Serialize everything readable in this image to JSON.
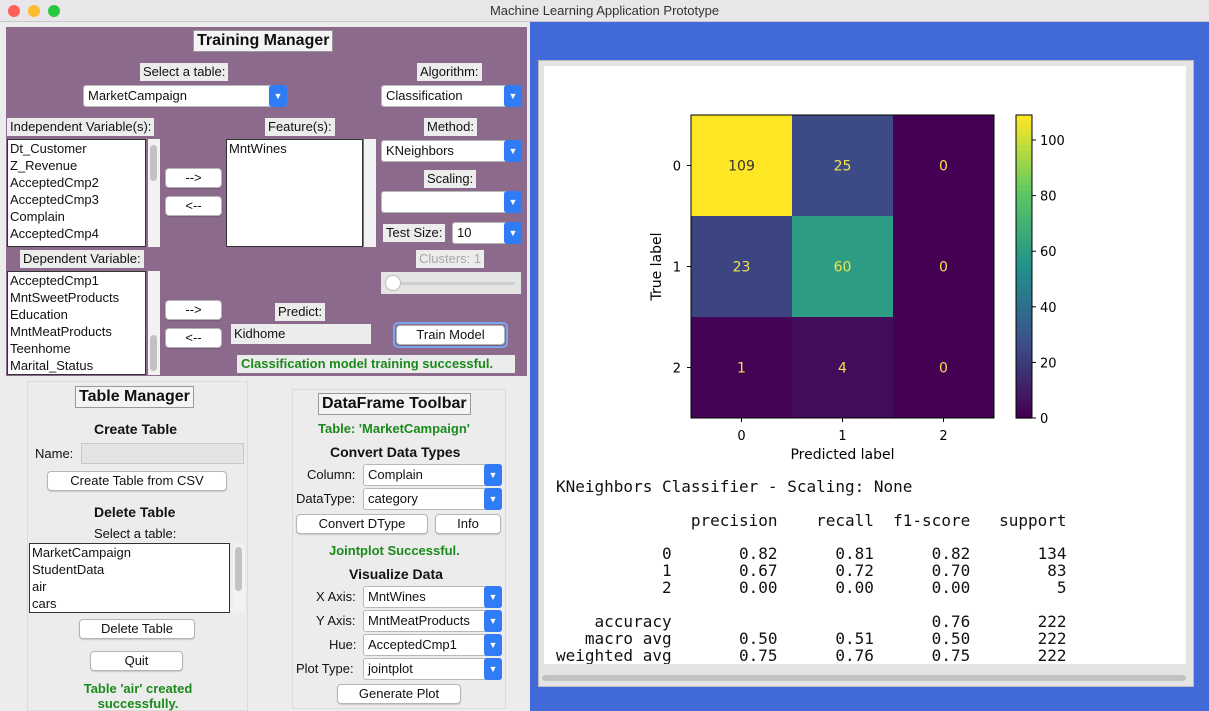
{
  "window": {
    "title": "Machine Learning Application Prototype"
  },
  "training": {
    "header": "Training Manager",
    "select_table_label": "Select a table:",
    "table_value": "MarketCampaign",
    "algorithm_label": "Algorithm:",
    "algorithm_value": "Classification",
    "indep_label": "Independent Variable(s):",
    "indep_items": [
      "Dt_Customer",
      "Z_Revenue",
      "AcceptedCmp2",
      "AcceptedCmp3",
      "Complain",
      "AcceptedCmp4"
    ],
    "features_label": "Feature(s):",
    "features_items": [
      "MntWines"
    ],
    "method_label": "Method:",
    "method_value": "KNeighbors",
    "scaling_label": "Scaling:",
    "scaling_value": "",
    "testsize_label": "Test Size:",
    "testsize_value": "10",
    "clusters_label": "Clusters: 1",
    "dep_label": "Dependent Variable:",
    "dep_items": [
      "AcceptedCmp1",
      "MntSweetProducts",
      "Education",
      "MntMeatProducts",
      "Teenhome",
      "Marital_Status"
    ],
    "add_label": "-->",
    "remove_label": "<--",
    "predict_label": "Predict:",
    "predict_value": "Kidhome",
    "train_button": "Train Model",
    "status": "Classification model training successful."
  },
  "table_manager": {
    "header": "Table Manager",
    "create_title": "Create Table",
    "name_label": "Name:",
    "name_value": "",
    "create_button": "Create Table from CSV",
    "delete_title": "Delete Table",
    "select_label": "Select a table:",
    "tables": [
      "MarketCampaign",
      "StudentData",
      "air",
      "cars"
    ],
    "delete_button": "Delete Table",
    "quit_button": "Quit",
    "status": "Table 'air' created successfully."
  },
  "toolbar": {
    "header": "DataFrame Toolbar",
    "table_status": "Table: 'MarketCampaign'",
    "convert_title": "Convert Data Types",
    "column_label": "Column:",
    "column_value": "Complain",
    "dtype_label": "DataType:",
    "dtype_value": "category",
    "convert_button": "Convert DType",
    "info_button": "Info",
    "plot_status": "Jointplot Successful.",
    "visualize_title": "Visualize Data",
    "xaxis_label": "X Axis:",
    "xaxis_value": "MntWines",
    "yaxis_label": "Y Axis:",
    "yaxis_value": "MntMeatProducts",
    "hue_label": "Hue:",
    "hue_value": "AcceptedCmp1",
    "plottype_label": "Plot Type:",
    "plottype_value": "jointplot",
    "generate_button": "Generate Plot"
  },
  "report": {
    "title": "KNeighbors Classifier - Scaling: None",
    "header_row": "              precision    recall  f1-score   support",
    "rows": [
      "           0       0.82      0.81      0.82       134",
      "           1       0.67      0.72      0.70        83",
      "           2       0.00      0.00      0.00         5",
      "",
      "    accuracy                           0.76       222",
      "   macro avg       0.50      0.51      0.50       222",
      "weighted avg       0.75      0.76      0.75       222"
    ]
  },
  "colors": {
    "window_bg": "#4169d8",
    "training_bg": "#8b6a8c",
    "success": "#1a8a1a",
    "select_arrow": "#2f7cf6"
  },
  "chart_data": {
    "type": "heatmap",
    "x_categories": [
      "0",
      "1",
      "2"
    ],
    "y_categories": [
      "0",
      "1",
      "2"
    ],
    "values": [
      [
        109,
        25,
        0
      ],
      [
        23,
        60,
        0
      ],
      [
        1,
        4,
        0
      ]
    ],
    "xlabel": "Predicted label",
    "ylabel": "True label",
    "colorbar_ticks": [
      0,
      20,
      40,
      60,
      80,
      100
    ],
    "colormap": "viridis"
  }
}
